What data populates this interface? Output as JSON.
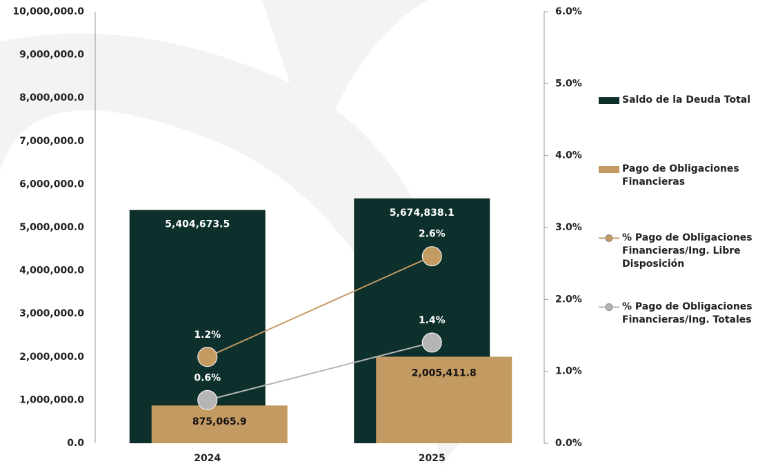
{
  "chart_data": {
    "type": "bar",
    "categories": [
      "2024",
      "2025"
    ],
    "series": [
      {
        "name": "Saldo de la Deuda Total",
        "color": "#0d302d",
        "values": [
          5404673.5,
          5674838.1
        ],
        "value_labels": [
          "5,404,673.5",
          "5,674,838.1"
        ]
      },
      {
        "name": "Pago de Obligaciones Financieras",
        "color": "#c49a63",
        "values": [
          875065.9,
          2005411.8
        ],
        "value_labels": [
          "875,065.9",
          "2,005,411.8"
        ]
      },
      {
        "name": "% Pago de Obligaciones Financieras/Ing. Libre Disposición",
        "type": "line",
        "axis": "y2",
        "color": "#c49a63",
        "values": [
          1.2,
          2.6
        ],
        "value_labels": [
          "1.2%",
          "2.6%"
        ]
      },
      {
        "name": "% Pago de Obligaciones Financieras/Ing. Totales",
        "type": "line",
        "axis": "y2",
        "color": "#b5b5b5",
        "values": [
          0.6,
          1.4
        ],
        "value_labels": [
          "0.6%",
          "1.4%"
        ]
      }
    ],
    "ylim": [
      0,
      10000000
    ],
    "yticks": [
      {
        "value": 0,
        "label": "0.0"
      },
      {
        "value": 1000000,
        "label": "1,000,000.0"
      },
      {
        "value": 2000000,
        "label": "2,000,000.0"
      },
      {
        "value": 3000000,
        "label": "3,000,000.0"
      },
      {
        "value": 4000000,
        "label": "4,000,000.0"
      },
      {
        "value": 5000000,
        "label": "5,000,000.0"
      },
      {
        "value": 6000000,
        "label": "6,000,000.0"
      },
      {
        "value": 7000000,
        "label": "7,000,000.0"
      },
      {
        "value": 8000000,
        "label": "8,000,000.0"
      },
      {
        "value": 9000000,
        "label": "9,000,000.0"
      },
      {
        "value": 10000000,
        "label": "10,000,000.0"
      }
    ],
    "y2lim": [
      0,
      6
    ],
    "y2ticks": [
      {
        "value": 0,
        "label": "0.0%"
      },
      {
        "value": 1,
        "label": "1.0%"
      },
      {
        "value": 2,
        "label": "2.0%"
      },
      {
        "value": 3,
        "label": "3.0%"
      },
      {
        "value": 4,
        "label": "4.0%"
      },
      {
        "value": 5,
        "label": "5.0%"
      },
      {
        "value": 6,
        "label": "6.0%"
      }
    ]
  }
}
